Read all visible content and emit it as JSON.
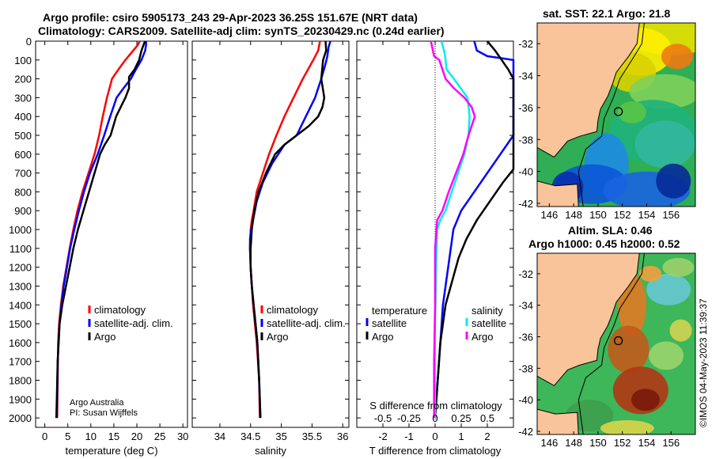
{
  "header": {
    "line1": "Argo profile: csiro 5905173_243 29-Apr-2023 36.25S 151.67E (NRT data)",
    "line2": "Climatology: CARS2009. Satellite-adj clim: synTS_20230429.nc (0.24d earlier)"
  },
  "credit": {
    "org": "Argo Australia",
    "pi": "PI: Susan Wijffels",
    "stamp": "©IMOS 04-May-2023 11:39:37"
  },
  "colors": {
    "climatology": "#ff0000",
    "satellite": "#0000ff",
    "argo": "#000000",
    "sal_sat": "#00eeee",
    "sal_argo": "#ff00ff",
    "land": "#f9c49a"
  },
  "chart_data": [
    {
      "type": "line",
      "name": "temperature",
      "xlabel": "temperature (deg C)",
      "ylabel": "",
      "xlim": [
        -2,
        31
      ],
      "ylim": [
        2050,
        0
      ],
      "xticks": [
        0,
        5,
        10,
        15,
        20,
        25,
        30
      ],
      "yticks": [
        0,
        100,
        200,
        300,
        400,
        500,
        600,
        700,
        800,
        900,
        1000,
        1100,
        1200,
        1300,
        1400,
        1500,
        1600,
        1700,
        1800,
        1900,
        2000
      ],
      "legend": [
        "climatology",
        "satellite-adj. clim.",
        "Argo"
      ],
      "series": [
        {
          "name": "climatology",
          "x": [
            20.6,
            20.2,
            19.2,
            17.5,
            16.0,
            14.6,
            13.5,
            12.6,
            11.8,
            10.8,
            9.5,
            8.2,
            7.1,
            6.2,
            5.4,
            4.7,
            4.0,
            3.5,
            3.1,
            2.9,
            2.7
          ],
          "y": [
            0,
            20,
            50,
            100,
            150,
            200,
            300,
            400,
            500,
            600,
            700,
            800,
            900,
            1000,
            1100,
            1200,
            1300,
            1400,
            1500,
            1600,
            2000
          ]
        },
        {
          "name": "satellite-adj. clim.",
          "x": [
            22.0,
            22.0,
            21.8,
            21.0,
            19.8,
            18.7,
            17.1,
            15.6,
            14.2,
            12.9,
            11.5,
            9.8,
            8.5,
            7.4,
            6.4,
            5.5,
            4.8,
            4.1,
            3.6,
            3.2,
            2.8,
            2.6
          ],
          "y": [
            0,
            20,
            50,
            100,
            150,
            200,
            250,
            300,
            400,
            500,
            600,
            700,
            800,
            900,
            1000,
            1100,
            1200,
            1300,
            1400,
            1500,
            1700,
            2000
          ]
        },
        {
          "name": "Argo",
          "x": [
            21.8,
            21.6,
            21.0,
            20.5,
            19.5,
            18.3,
            18.3,
            17.5,
            16.5,
            15.5,
            14.3,
            13.0,
            12.0,
            10.8,
            9.6,
            8.4,
            7.2,
            6.2,
            5.4,
            4.6,
            3.8,
            3.2,
            2.8,
            2.6,
            2.5
          ],
          "y": [
            0,
            10,
            50,
            100,
            150,
            190,
            250,
            300,
            350,
            400,
            500,
            550,
            600,
            700,
            800,
            900,
            1000,
            1100,
            1200,
            1300,
            1400,
            1500,
            1700,
            1900,
            2000
          ]
        }
      ]
    },
    {
      "type": "line",
      "name": "salinity",
      "xlabel": "salinity",
      "xlim": [
        33.55,
        36.1
      ],
      "ylim": [
        2050,
        0
      ],
      "xticks": [
        34,
        34.5,
        35,
        35.5,
        36
      ],
      "legend": [
        "climatology",
        "satellite-adj. clim.",
        "Argo"
      ],
      "series": [
        {
          "name": "climatology",
          "x": [
            35.63,
            35.6,
            35.52,
            35.35,
            35.2,
            35.05,
            34.92,
            34.8,
            34.7,
            34.6,
            34.55,
            34.52,
            34.5,
            34.49,
            34.5,
            34.52,
            34.54,
            34.57,
            34.6,
            34.62,
            34.64,
            34.65
          ],
          "y": [
            0,
            50,
            100,
            200,
            300,
            400,
            500,
            600,
            700,
            800,
            900,
            950,
            1000,
            1100,
            1200,
            1300,
            1400,
            1500,
            1600,
            1700,
            1800,
            2000
          ]
        },
        {
          "name": "satellite-adj. clim.",
          "x": [
            35.8,
            35.77,
            35.75,
            35.72,
            35.65,
            35.55,
            35.4,
            35.25,
            35.05,
            34.85,
            34.7,
            34.6,
            34.54,
            34.51,
            34.49,
            34.49,
            34.5,
            34.52,
            34.55,
            34.58,
            34.61,
            34.64,
            34.66
          ],
          "y": [
            0,
            30,
            80,
            120,
            200,
            300,
            400,
            500,
            550,
            650,
            750,
            850,
            950,
            1000,
            1050,
            1100,
            1200,
            1300,
            1400,
            1500,
            1600,
            1800,
            2000
          ]
        },
        {
          "name": "Argo",
          "x": [
            35.72,
            35.73,
            35.68,
            35.65,
            35.7,
            35.67,
            35.6,
            35.45,
            35.25,
            35.05,
            34.9,
            34.75,
            34.63,
            34.56,
            34.52,
            34.5,
            34.5,
            34.52,
            34.55,
            34.58,
            34.61,
            34.64,
            34.66
          ],
          "y": [
            0,
            50,
            100,
            200,
            300,
            350,
            400,
            450,
            500,
            550,
            600,
            700,
            800,
            900,
            1000,
            1100,
            1200,
            1300,
            1400,
            1500,
            1600,
            1800,
            2000
          ]
        }
      ]
    },
    {
      "type": "line",
      "name": "difference from climatology",
      "xlabel": "T difference from climatology",
      "xlabel2": "S difference from climatology",
      "xlim": [
        -3,
        3
      ],
      "ylim": [
        2050,
        0
      ],
      "xticks": [
        -2,
        -1,
        0,
        1,
        2
      ],
      "xticks2": [
        "-0.5",
        "-0.25",
        "0",
        "0.25",
        "0.5"
      ],
      "legend_titles": [
        "temperature",
        "salinity"
      ],
      "legend_t": [
        "satellite",
        "Argo"
      ],
      "legend_s": [
        "satellite",
        "Argo"
      ],
      "series": [
        {
          "name": "T satellite",
          "x": [
            1.5,
            1.6,
            2.0,
            3.2,
            3.5,
            3.5,
            3.0,
            2.5,
            2.0,
            1.5,
            1.0,
            0.7,
            0.5,
            0.3,
            0.2,
            0.1,
            0.0
          ],
          "y": [
            0,
            50,
            80,
            100,
            200,
            400,
            500,
            600,
            700,
            800,
            900,
            1000,
            1200,
            1400,
            1600,
            1800,
            2000
          ]
        },
        {
          "name": "T Argo",
          "x": [
            2.0,
            2.3,
            2.8,
            3.5,
            3.5,
            3.0,
            2.6,
            2.1,
            1.6,
            1.2,
            0.9,
            0.6,
            0.4,
            0.3,
            0.2,
            0.1,
            0.0
          ],
          "y": [
            0,
            50,
            150,
            200,
            600,
            680,
            750,
            850,
            950,
            1050,
            1150,
            1300,
            1400,
            1500,
            1600,
            1800,
            2000
          ]
        },
        {
          "name": "S satellite",
          "x": [
            0.06,
            0.09,
            0.1,
            0.11,
            0.18,
            0.31,
            0.33,
            0.32,
            0.28,
            0.22,
            0.16,
            0.1,
            0.05,
            0.02,
            0.01,
            0.0,
            0.0,
            0.0
          ],
          "y": [
            0,
            60,
            100,
            150,
            200,
            300,
            400,
            500,
            600,
            700,
            800,
            900,
            950,
            1000,
            1200,
            1500,
            1800,
            2000
          ]
        },
        {
          "name": "S Argo",
          "x": [
            -0.04,
            -0.01,
            0.04,
            0.1,
            0.18,
            0.28,
            0.35,
            0.38,
            0.32,
            0.27,
            0.2,
            0.13,
            0.07,
            0.02,
            0.0,
            0.0,
            -0.01,
            -0.01
          ],
          "y": [
            0,
            80,
            100,
            200,
            250,
            300,
            350,
            400,
            500,
            600,
            700,
            800,
            900,
            950,
            1100,
            1400,
            1700,
            2000
          ]
        }
      ]
    },
    {
      "type": "heatmap",
      "name": "sst-map",
      "title": "sat. SST: 22.1  Argo: 21.8",
      "xticks": [
        "146",
        "148",
        "150",
        "152",
        "154",
        "156"
      ],
      "yticks": [
        "-32",
        "-34",
        "-36",
        "-38",
        "-40",
        "-42"
      ],
      "xlim": [
        145,
        158
      ],
      "ylim": [
        -42.2,
        -30.7
      ],
      "marker": {
        "lon": 151.67,
        "lat": -36.25
      }
    },
    {
      "type": "heatmap",
      "name": "sla-map",
      "title1": "Altim. SLA: 0.46",
      "title2": "Argo h1000: 0.45  h2000: 0.52",
      "xticks": [
        "146",
        "148",
        "150",
        "152",
        "154",
        "156"
      ],
      "yticks": [
        "-32",
        "-34",
        "-36",
        "-38",
        "-40",
        "-42"
      ],
      "xlim": [
        145,
        158
      ],
      "ylim": [
        -42.2,
        -30.7
      ],
      "marker": {
        "lon": 151.67,
        "lat": -36.25
      }
    }
  ]
}
